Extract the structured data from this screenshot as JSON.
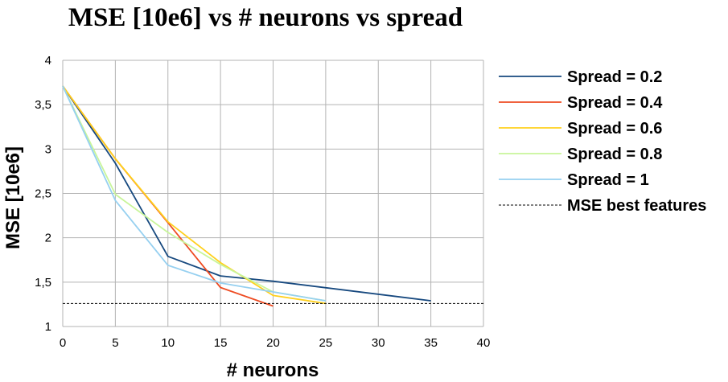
{
  "chart_data": {
    "type": "line",
    "title": "MSE [10e6] vs # neurons vs spread",
    "xlabel": "# neurons",
    "ylabel": "MSE [10e6]",
    "xlim": [
      0,
      40
    ],
    "ylim": [
      1,
      4
    ],
    "xticks": [
      0,
      5,
      10,
      15,
      20,
      25,
      30,
      35,
      40
    ],
    "yticks": [
      1,
      1.5,
      2,
      2.5,
      3,
      3.5,
      4
    ],
    "xtick_labels": [
      "0",
      "5",
      "10",
      "15",
      "20",
      "25",
      "30",
      "35",
      "40"
    ],
    "ytick_labels": [
      "1",
      "1,5",
      "2",
      "2,5",
      "3",
      "3,5",
      "4"
    ],
    "grid": true,
    "legend_position": "right",
    "series": [
      {
        "name": "Spread = 0.2",
        "color": "#17497f",
        "x": [
          0,
          5,
          10,
          15,
          20,
          35
        ],
        "y": [
          3.71,
          2.84,
          1.79,
          1.57,
          1.51,
          1.29
        ]
      },
      {
        "name": "Spread = 0.4",
        "color": "#ee4c23",
        "x": [
          0,
          5,
          10,
          15,
          20
        ],
        "y": [
          3.71,
          2.89,
          2.17,
          1.44,
          1.23
        ]
      },
      {
        "name": "Spread = 0.6",
        "color": "#ffd01c",
        "x": [
          0,
          5,
          10,
          15,
          20,
          25
        ],
        "y": [
          3.71,
          2.89,
          2.18,
          1.72,
          1.35,
          1.26
        ]
      },
      {
        "name": "Spread = 0.8",
        "color": "#c8f59a",
        "x": [
          0,
          5,
          10,
          15,
          20,
          25
        ],
        "y": [
          3.71,
          2.49,
          2.06,
          1.7,
          1.39,
          1.29
        ]
      },
      {
        "name": "Spread = 1",
        "color": "#96d0f0",
        "x": [
          0,
          5,
          10,
          15,
          20,
          25
        ],
        "y": [
          3.71,
          2.42,
          1.69,
          1.49,
          1.39,
          1.29
        ]
      }
    ],
    "reference_line": {
      "name": "MSE best features",
      "color": "#000000",
      "style": "dashed",
      "y": 1.26
    }
  }
}
